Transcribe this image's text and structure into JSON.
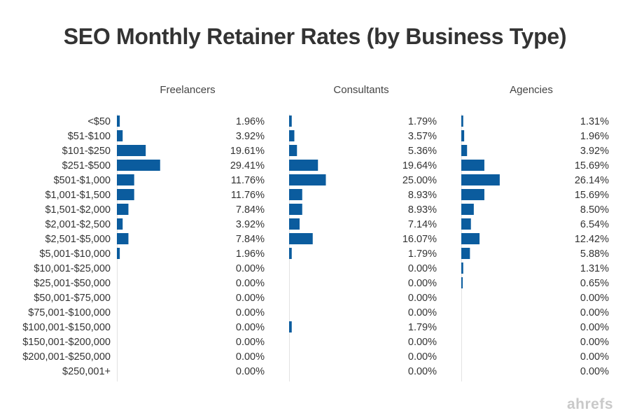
{
  "chart_data": {
    "type": "bar",
    "title": "SEO Monthly Retainer Rates (by Business Type)",
    "orientation": "horizontal",
    "categories": [
      "<$50",
      "$51-$100",
      "$101-$250",
      "$251-$500",
      "$501-$1,000",
      "$1,001-$1,500",
      "$1,501-$2,000",
      "$2,001-$2,500",
      "$2,501-$5,000",
      "$5,001-$10,000",
      "$10,001-$25,000",
      "$25,001-$50,000",
      "$50,001-$75,000",
      "$75,001-$100,000",
      "$100,001-$150,000",
      "$150,001-$200,000",
      "$200,001-$250,000",
      "$250,001+"
    ],
    "series": [
      {
        "name": "Freelancers",
        "values": [
          1.96,
          3.92,
          19.61,
          29.41,
          11.76,
          11.76,
          7.84,
          3.92,
          7.84,
          1.96,
          0,
          0,
          0,
          0,
          0,
          0,
          0,
          0
        ],
        "labels": [
          "1.96%",
          "3.92%",
          "19.61%",
          "29.41%",
          "11.76%",
          "11.76%",
          "7.84%",
          "3.92%",
          "7.84%",
          "1.96%",
          "0.00%",
          "0.00%",
          "0.00%",
          "0.00%",
          "0.00%",
          "0.00%",
          "0.00%",
          "0.00%"
        ]
      },
      {
        "name": "Consultants",
        "values": [
          1.79,
          3.57,
          5.36,
          19.64,
          25.0,
          8.93,
          8.93,
          7.14,
          16.07,
          1.79,
          0,
          0,
          0,
          0,
          1.79,
          0,
          0,
          0
        ],
        "labels": [
          "1.79%",
          "3.57%",
          "5.36%",
          "19.64%",
          "25.00%",
          "8.93%",
          "8.93%",
          "7.14%",
          "16.07%",
          "1.79%",
          "0.00%",
          "0.00%",
          "0.00%",
          "0.00%",
          "1.79%",
          "0.00%",
          "0.00%",
          "0.00%"
        ]
      },
      {
        "name": "Agencies",
        "values": [
          1.31,
          1.96,
          3.92,
          15.69,
          26.14,
          15.69,
          8.5,
          6.54,
          12.42,
          5.88,
          1.31,
          0.65,
          0,
          0,
          0,
          0,
          0,
          0
        ],
        "labels": [
          "1.31%",
          "1.96%",
          "3.92%",
          "15.69%",
          "26.14%",
          "15.69%",
          "8.50%",
          "6.54%",
          "12.42%",
          "5.88%",
          "1.31%",
          "0.65%",
          "0.00%",
          "0.00%",
          "0.00%",
          "0.00%",
          "0.00%",
          "0.00%"
        ]
      }
    ],
    "xlim": [
      0,
      100
    ],
    "grid": false,
    "bar_color": "#0b5c9e"
  },
  "watermark": "ahrefs"
}
